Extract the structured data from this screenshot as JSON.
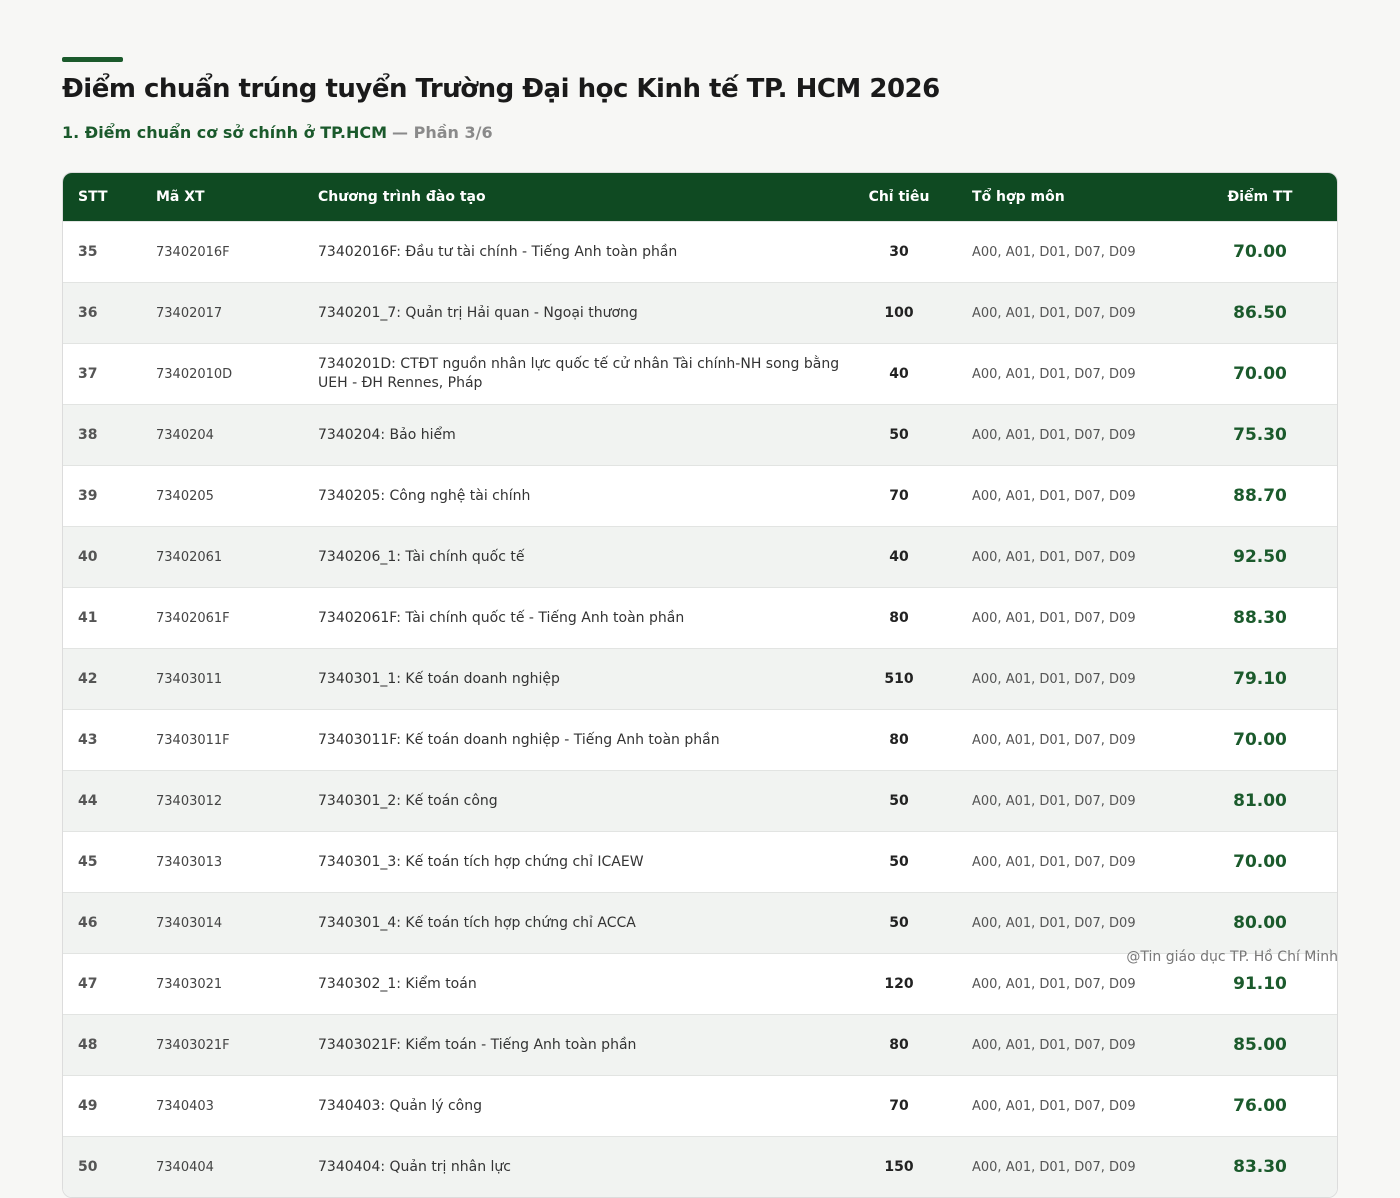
{
  "header": {
    "title": "Điểm chuẩn trúng tuyển Trường Đại học Kinh tế TP. HCM 2026",
    "subtitle": "1. Điểm chuẩn cơ sở chính ở TP.HCM",
    "part": "— Phần 3/6"
  },
  "table": {
    "columns": [
      "STT",
      "Mã XT",
      "Chương trình đào tạo",
      "Chỉ tiêu",
      "Tổ hợp môn",
      "Điểm TT"
    ],
    "rows": [
      [
        "35",
        "73402016F",
        "73402016F: Đầu tư tài chính - Tiếng Anh toàn phần",
        "30",
        "A00, A01, D01, D07, D09",
        "70.00"
      ],
      [
        "36",
        "73402017",
        "7340201_7: Quản trị Hải quan - Ngoại thương",
        "100",
        "A00, A01, D01, D07, D09",
        "86.50"
      ],
      [
        "37",
        "73402010D",
        "7340201D: CTĐT nguồn nhân lực quốc tế cử nhân Tài chính-NH song bằng UEH - ĐH Rennes, Pháp",
        "40",
        "A00, A01, D01, D07, D09",
        "70.00"
      ],
      [
        "38",
        "7340204",
        "7340204: Bảo hiểm",
        "50",
        "A00, A01, D01, D07, D09",
        "75.30"
      ],
      [
        "39",
        "7340205",
        "7340205: Công nghệ tài chính",
        "70",
        "A00, A01, D01, D07, D09",
        "88.70"
      ],
      [
        "40",
        "73402061",
        "7340206_1: Tài chính quốc tế",
        "40",
        "A00, A01, D01, D07, D09",
        "92.50"
      ],
      [
        "41",
        "73402061F",
        "73402061F: Tài chính quốc tế - Tiếng Anh toàn phần",
        "80",
        "A00, A01, D01, D07, D09",
        "88.30"
      ],
      [
        "42",
        "73403011",
        "7340301_1: Kế toán doanh nghiệp",
        "510",
        "A00, A01, D01, D07, D09",
        "79.10"
      ],
      [
        "43",
        "73403011F",
        "73403011F: Kế toán doanh nghiệp - Tiếng Anh toàn phần",
        "80",
        "A00, A01, D01, D07, D09",
        "70.00"
      ],
      [
        "44",
        "73403012",
        "7340301_2: Kế toán công",
        "50",
        "A00, A01, D01, D07, D09",
        "81.00"
      ],
      [
        "45",
        "73403013",
        "7340301_3: Kế toán tích hợp chứng chỉ ICAEW",
        "50",
        "A00, A01, D01, D07, D09",
        "70.00"
      ],
      [
        "46",
        "73403014",
        "7340301_4: Kế toán tích hợp chứng chỉ ACCA",
        "50",
        "A00, A01, D01, D07, D09",
        "80.00"
      ],
      [
        "47",
        "73403021",
        "7340302_1: Kiểm toán",
        "120",
        "A00, A01, D01, D07, D09",
        "91.10"
      ],
      [
        "48",
        "73403021F",
        "73403021F: Kiểm toán - Tiếng Anh toàn phần",
        "80",
        "A00, A01, D01, D07, D09",
        "85.00"
      ],
      [
        "49",
        "7340403",
        "7340403: Quản lý công",
        "70",
        "A00, A01, D01, D07, D09",
        "76.00"
      ],
      [
        "50",
        "7340404",
        "7340404: Quản trị nhân lực",
        "150",
        "A00, A01, D01, D07, D09",
        "83.30"
      ]
    ]
  },
  "footer": {
    "credit": "@Tin giáo dục TP. Hồ Chí Minh"
  }
}
